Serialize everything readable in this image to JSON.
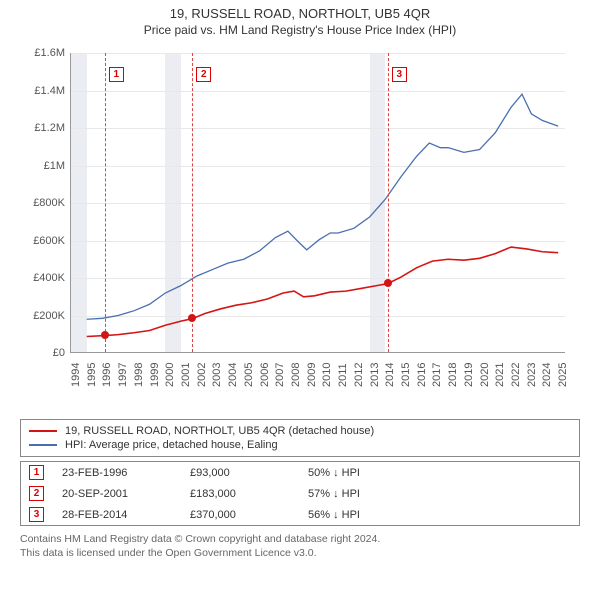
{
  "header": {
    "title": "19, RUSSELL ROAD, NORTHOLT, UB5 4QR",
    "subtitle": "Price paid vs. HM Land Registry's House Price Index (HPI)"
  },
  "chart": {
    "type": "line",
    "ylim": [
      0,
      1600000
    ],
    "ytick_step": 200000,
    "ytick_labels": [
      "£0",
      "£200K",
      "£400K",
      "£600K",
      "£800K",
      "£1M",
      "£1.2M",
      "£1.4M",
      "£1.6M"
    ],
    "xlim": [
      1994,
      2025.5
    ],
    "xticks": [
      1994,
      1995,
      1996,
      1997,
      1998,
      1999,
      2000,
      2001,
      2002,
      2003,
      2004,
      2005,
      2006,
      2007,
      2008,
      2009,
      2010,
      2011,
      2012,
      2013,
      2014,
      2015,
      2016,
      2017,
      2018,
      2019,
      2020,
      2021,
      2022,
      2023,
      2024,
      2025
    ],
    "background_color": "#ffffff",
    "grid_color": "#e8e8e8",
    "shaded_bands": [
      {
        "from": 1994,
        "to": 1995
      },
      {
        "from": 2000,
        "to": 2001
      },
      {
        "from": 2013,
        "to": 2014
      }
    ],
    "event_vlines": [
      {
        "x": 1996.15,
        "label": "1"
      },
      {
        "x": 2001.72,
        "label": "2"
      },
      {
        "x": 2014.16,
        "label": "3"
      }
    ],
    "series": [
      {
        "name": "price_paid",
        "label": "19, RUSSELL ROAD, NORTHOLT, UB5 4QR (detached house)",
        "color": "#d41515",
        "line_width": 1.6,
        "points": [
          [
            1995.0,
            88000
          ],
          [
            1996.15,
            93000
          ],
          [
            1997.0,
            98000
          ],
          [
            1998.0,
            108000
          ],
          [
            1999.0,
            120000
          ],
          [
            2000.0,
            148000
          ],
          [
            2001.0,
            170000
          ],
          [
            2001.72,
            183000
          ],
          [
            2002.5,
            210000
          ],
          [
            2003.5,
            235000
          ],
          [
            2004.5,
            255000
          ],
          [
            2005.5,
            268000
          ],
          [
            2006.5,
            288000
          ],
          [
            2007.5,
            320000
          ],
          [
            2008.2,
            330000
          ],
          [
            2008.8,
            300000
          ],
          [
            2009.5,
            305000
          ],
          [
            2010.5,
            325000
          ],
          [
            2011.5,
            330000
          ],
          [
            2012.5,
            345000
          ],
          [
            2013.5,
            360000
          ],
          [
            2014.16,
            370000
          ],
          [
            2015.0,
            405000
          ],
          [
            2016.0,
            455000
          ],
          [
            2017.0,
            490000
          ],
          [
            2018.0,
            500000
          ],
          [
            2019.0,
            495000
          ],
          [
            2020.0,
            505000
          ],
          [
            2021.0,
            530000
          ],
          [
            2022.0,
            565000
          ],
          [
            2023.0,
            555000
          ],
          [
            2024.0,
            540000
          ],
          [
            2025.0,
            535000
          ]
        ],
        "sale_dots": [
          [
            1996.15,
            93000
          ],
          [
            2001.72,
            183000
          ],
          [
            2014.16,
            370000
          ]
        ]
      },
      {
        "name": "hpi",
        "label": "HPI: Average price, detached house, Ealing",
        "color": "#4a6fb0",
        "line_width": 1.3,
        "points": [
          [
            1995.0,
            180000
          ],
          [
            1996.0,
            185000
          ],
          [
            1997.0,
            200000
          ],
          [
            1998.0,
            225000
          ],
          [
            1999.0,
            260000
          ],
          [
            2000.0,
            320000
          ],
          [
            2001.0,
            360000
          ],
          [
            2002.0,
            410000
          ],
          [
            2003.0,
            445000
          ],
          [
            2004.0,
            480000
          ],
          [
            2005.0,
            500000
          ],
          [
            2006.0,
            545000
          ],
          [
            2007.0,
            615000
          ],
          [
            2007.8,
            650000
          ],
          [
            2008.5,
            590000
          ],
          [
            2009.0,
            550000
          ],
          [
            2009.8,
            605000
          ],
          [
            2010.5,
            640000
          ],
          [
            2011.0,
            640000
          ],
          [
            2012.0,
            665000
          ],
          [
            2013.0,
            725000
          ],
          [
            2014.0,
            820000
          ],
          [
            2015.0,
            940000
          ],
          [
            2016.0,
            1050000
          ],
          [
            2016.8,
            1120000
          ],
          [
            2017.5,
            1095000
          ],
          [
            2018.0,
            1095000
          ],
          [
            2019.0,
            1070000
          ],
          [
            2020.0,
            1085000
          ],
          [
            2021.0,
            1175000
          ],
          [
            2022.0,
            1310000
          ],
          [
            2022.7,
            1380000
          ],
          [
            2023.3,
            1275000
          ],
          [
            2024.0,
            1240000
          ],
          [
            2025.0,
            1210000
          ]
        ]
      }
    ]
  },
  "legend": {
    "rows": [
      {
        "color": "#d41515",
        "text": "19, RUSSELL ROAD, NORTHOLT, UB5 4QR (detached house)"
      },
      {
        "color": "#4a6fb0",
        "text": "HPI: Average price, detached house, Ealing"
      }
    ]
  },
  "events": [
    {
      "num": "1",
      "date": "23-FEB-1996",
      "price": "£93,000",
      "delta": "50% ↓ HPI"
    },
    {
      "num": "2",
      "date": "20-SEP-2001",
      "price": "£183,000",
      "delta": "57% ↓ HPI"
    },
    {
      "num": "3",
      "date": "28-FEB-2014",
      "price": "£370,000",
      "delta": "56% ↓ HPI"
    }
  ],
  "footer": {
    "line1": "Contains HM Land Registry data © Crown copyright and database right 2024.",
    "line2": "This data is licensed under the Open Government Licence v3.0."
  }
}
